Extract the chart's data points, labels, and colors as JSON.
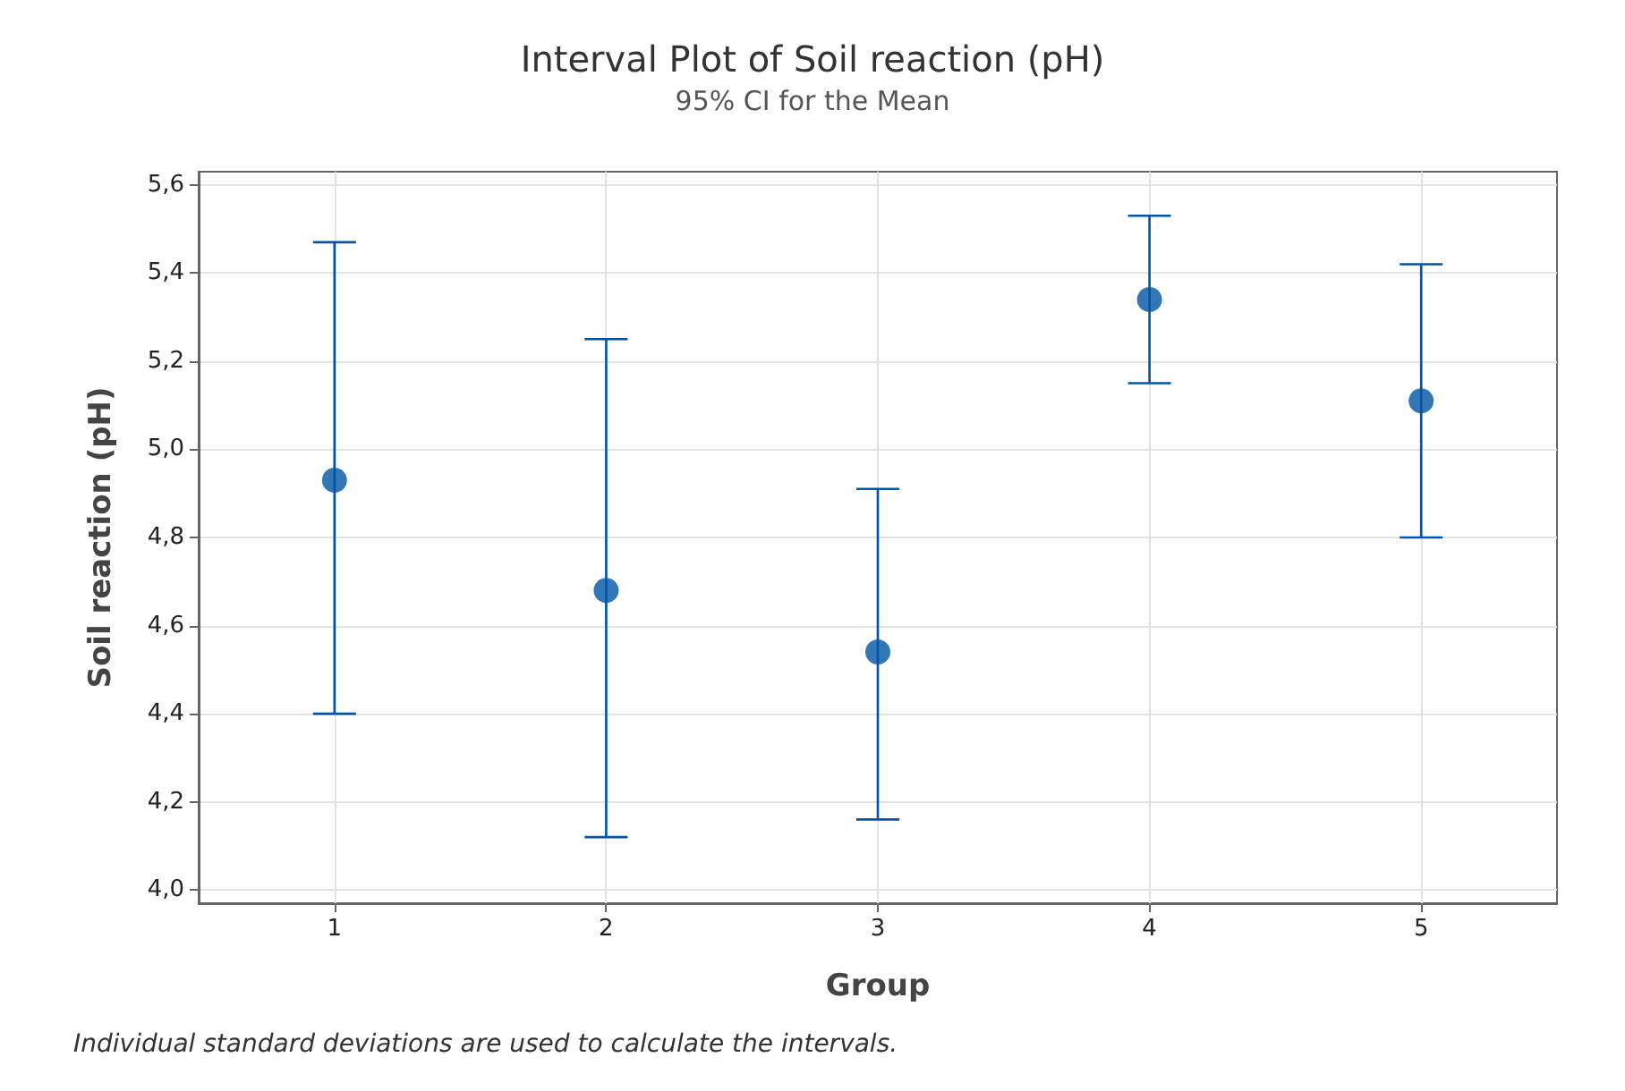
{
  "chart_data": {
    "type": "scatter",
    "title": "Interval Plot of Soil reaction (pH)",
    "subtitle": "95% CI for the Mean",
    "xlabel": "Group",
    "ylabel": "Soil reaction (pH)",
    "categories": [
      "1",
      "2",
      "3",
      "4",
      "5"
    ],
    "values": [
      4.93,
      4.68,
      4.54,
      5.34,
      5.11
    ],
    "errors": [
      [
        4.4,
        5.47
      ],
      [
        4.12,
        5.25
      ],
      [
        4.16,
        4.91
      ],
      [
        5.15,
        5.53
      ],
      [
        4.8,
        5.42
      ]
    ],
    "color": "#0054a6",
    "marker": "circle",
    "grid": true,
    "ylim": [
      3.97,
      5.63
    ],
    "yticks": [
      {
        "value": 4.0,
        "label": "4,0"
      },
      {
        "value": 4.2,
        "label": "4,2"
      },
      {
        "value": 4.4,
        "label": "4,4"
      },
      {
        "value": 4.6,
        "label": "4,6"
      },
      {
        "value": 4.8,
        "label": "4,8"
      },
      {
        "value": 5.0,
        "label": "5,0"
      },
      {
        "value": 5.2,
        "label": "5,2"
      },
      {
        "value": 5.4,
        "label": "5,4"
      },
      {
        "value": 5.6,
        "label": "5,6"
      }
    ],
    "annotations": [
      "Individual standard deviations are used to calculate the intervals."
    ]
  }
}
